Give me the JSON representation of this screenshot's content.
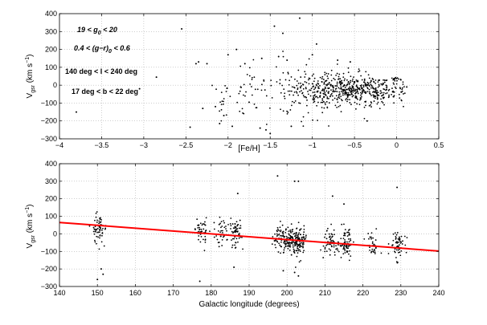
{
  "chart_data": [
    {
      "type": "scatter",
      "xlabel": "[Fe/H]",
      "ylabel": "V_gsr (km s^-1)",
      "xlim": [
        -4,
        0.5
      ],
      "ylim": [
        -300,
        400
      ],
      "xticks": [
        -4,
        -3.5,
        -3,
        -2.5,
        -2,
        -1.5,
        -1,
        -0.5,
        0,
        0.5
      ],
      "yticks": [
        -300,
        -200,
        -100,
        0,
        100,
        200,
        300,
        400
      ],
      "xtick_labels": [
        "−4",
        "−3.5",
        "−3",
        "−2.5",
        "−2",
        "−1.5",
        "−1",
        "−0.5",
        "0",
        "0.5"
      ],
      "ytick_labels": [
        "−300",
        "−200",
        "−100",
        "0",
        "100",
        "200",
        "300",
        "400"
      ],
      "annotations": {
        "mag_cut": "19 < g_0 < 20",
        "color_cut": "0.4 < (g−r)_0 < 0.6",
        "l_cut": "140 deg < l < 240 deg",
        "b_cut": "17 deg < b < 22 deg"
      },
      "points": [
        [
          -3.8,
          -150
        ],
        [
          -3.05,
          -20
        ],
        [
          -2.85,
          45
        ],
        [
          -2.55,
          315
        ],
        [
          -2.45,
          -235
        ],
        [
          -2.38,
          120
        ],
        [
          -2.35,
          130
        ],
        [
          -2.3,
          -130
        ],
        [
          -2.25,
          120
        ],
        [
          -2.15,
          -120
        ],
        [
          -2.1,
          -215
        ],
        [
          -2.05,
          -170
        ],
        [
          -1.95,
          -230
        ],
        [
          -1.85,
          -10
        ],
        [
          -1.75,
          -95
        ],
        [
          -1.62,
          -240
        ],
        [
          -1.55,
          -250
        ],
        [
          -1.5,
          -270
        ],
        [
          -1.45,
          330
        ],
        [
          -1.35,
          290
        ],
        [
          -1.25,
          -230
        ],
        [
          -1.15,
          375
        ],
        [
          -0.95,
          230
        ],
        [
          -0.35,
          -200
        ],
        [
          0.05,
          30
        ],
        [
          0.12,
          -10
        ],
        [
          -0.7,
          140
        ],
        [
          -0.55,
          130
        ],
        [
          -1.0,
          170
        ],
        [
          -1.3,
          140
        ],
        [
          -1.6,
          150
        ],
        [
          -1.8,
          120
        ],
        [
          -2.0,
          170
        ],
        [
          -1.9,
          200
        ],
        [
          -1.4,
          160
        ]
      ],
      "cluster": {
        "feh_center": -0.55,
        "feh_sigma": 0.35,
        "v_center": -30,
        "v_sigma": 45,
        "count": 560
      }
    },
    {
      "type": "scatter",
      "xlabel": "Galactic longitude (degrees)",
      "ylabel": "V_gsr (km s^-1)",
      "xlim": [
        140,
        240
      ],
      "ylim": [
        -300,
        400
      ],
      "xticks": [
        140,
        150,
        160,
        170,
        180,
        190,
        200,
        210,
        220,
        230,
        240
      ],
      "yticks": [
        -300,
        -200,
        -100,
        0,
        100,
        200,
        300,
        400
      ],
      "xtick_labels": [
        "140",
        "150",
        "160",
        "170",
        "180",
        "190",
        "200",
        "210",
        "220",
        "230",
        "240"
      ],
      "ytick_labels": [
        "−300",
        "−200",
        "−100",
        "0",
        "100",
        "200",
        "300",
        "400"
      ],
      "fit_line": {
        "x": [
          140,
          240
        ],
        "y": [
          65,
          -98
        ],
        "color": "#ff0000"
      },
      "groups": [
        {
          "l": 150.5,
          "v": 30,
          "n": 60
        },
        {
          "l": 177.5,
          "v": 10,
          "n": 45
        },
        {
          "l": 182.5,
          "v": 0,
          "n": 35
        },
        {
          "l": 186.5,
          "v": 0,
          "n": 55
        },
        {
          "l": 197.5,
          "v": -20,
          "n": 45
        },
        {
          "l": 200.5,
          "v": -30,
          "n": 70
        },
        {
          "l": 203.0,
          "v": -40,
          "n": 120
        },
        {
          "l": 211.5,
          "v": -50,
          "n": 55
        },
        {
          "l": 215.5,
          "v": -55,
          "n": 70
        },
        {
          "l": 222.5,
          "v": -65,
          "n": 35
        },
        {
          "l": 229.0,
          "v": -60,
          "n": 60
        }
      ],
      "outliers": [
        [
          150,
          -260
        ],
        [
          151,
          -200
        ],
        [
          151.5,
          -230
        ],
        [
          177,
          -270
        ],
        [
          187,
          230
        ],
        [
          197.5,
          330
        ],
        [
          202,
          300
        ],
        [
          203,
          300
        ],
        [
          199,
          -210
        ],
        [
          203,
          -240
        ],
        [
          212,
          215
        ],
        [
          215,
          170
        ],
        [
          229,
          265
        ],
        [
          186,
          -190
        ],
        [
          202,
          -220
        ]
      ]
    }
  ]
}
